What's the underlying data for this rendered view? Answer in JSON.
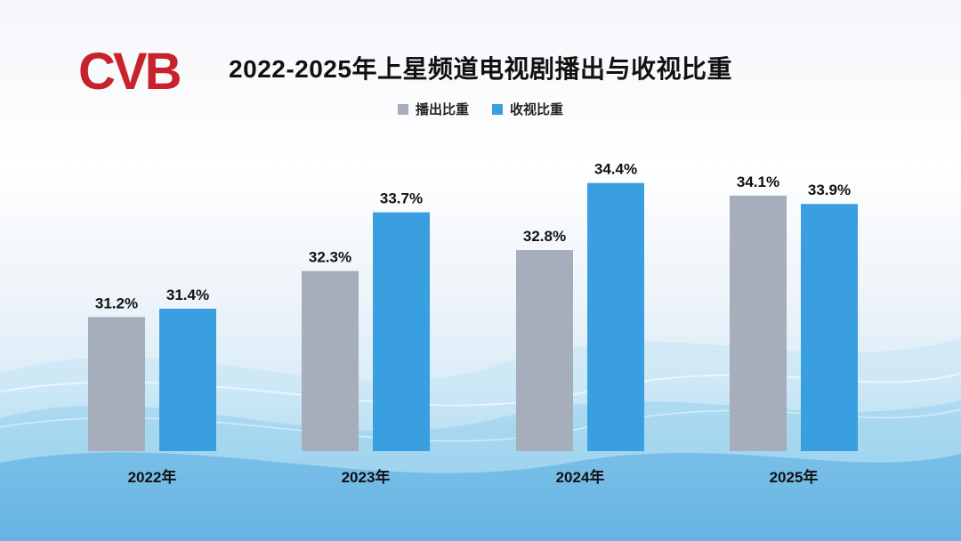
{
  "header": {
    "logo_text": "CVB",
    "title": "2022-2025年上星频道电视剧播出与收视比重"
  },
  "colors": {
    "series_broadcast": "#a6adbb",
    "series_rating": "#3a9fe0",
    "logo_red": "#c8232c"
  },
  "chart_data": {
    "type": "bar",
    "title": "2022-2025年上星频道电视剧播出与收视比重",
    "categories": [
      "2022年",
      "2023年",
      "2024年",
      "2025年"
    ],
    "series": [
      {
        "name": "播出比重",
        "values": [
          31.2,
          32.3,
          32.8,
          34.1
        ],
        "labels": [
          "31.2%",
          "32.3%",
          "32.8%",
          "34.1%"
        ]
      },
      {
        "name": "收视比重",
        "values": [
          31.4,
          33.7,
          34.4,
          33.9
        ],
        "labels": [
          "31.4%",
          "33.7%",
          "34.4%",
          "33.9%"
        ]
      }
    ],
    "ylim": [
      28.0,
      35.2
    ],
    "grid": false,
    "legend": "top-center",
    "xlabel": "",
    "ylabel": ""
  }
}
